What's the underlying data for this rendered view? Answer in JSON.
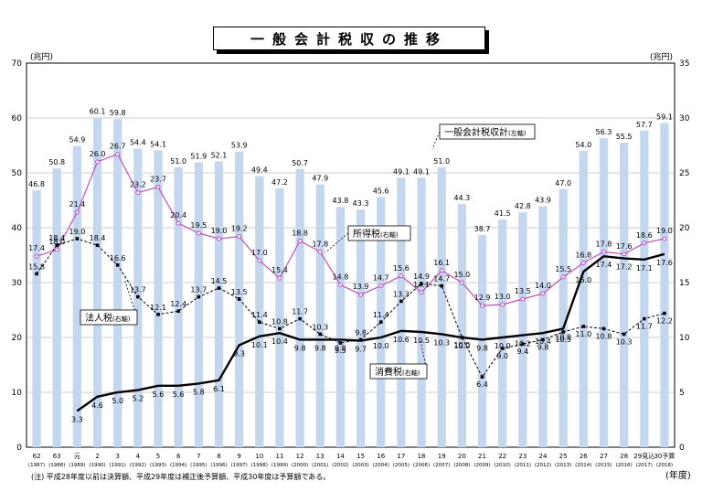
{
  "title": "一般会計税収の推移",
  "footnote": "(注) 平成28年度以前は決算額、平成29年度は補正後予算額、平成30年度は予算額である。",
  "chart_data": {
    "type": "bar+line",
    "y_left_unit": "(兆円)",
    "y_right_unit": "(兆円)",
    "x_unit": "(年度)",
    "y_left_range": [
      0,
      70
    ],
    "y_right_range": [
      0,
      35
    ],
    "y_left_ticks": [
      "0",
      "10",
      "20",
      "30",
      "40",
      "50",
      "60",
      "70"
    ],
    "y_right_ticks": [
      "0",
      "5",
      "10",
      "15",
      "20",
      "25",
      "30",
      "35"
    ],
    "grid": true,
    "categories_era": [
      "62",
      "63",
      "元",
      "2",
      "3",
      "4",
      "5",
      "6",
      "7",
      "8",
      "9",
      "10",
      "11",
      "12",
      "13",
      "14",
      "15",
      "16",
      "17",
      "18",
      "19",
      "20",
      "21",
      "22",
      "23",
      "24",
      "25",
      "26",
      "27",
      "28",
      "29見込",
      "30予算"
    ],
    "categories_year": [
      "(1987)",
      "(1988)",
      "(1989)",
      "(1990)",
      "(1991)",
      "(1992)",
      "(1993)",
      "(1994)",
      "(1995)",
      "(1996)",
      "(1997)",
      "(1998)",
      "(1999)",
      "(2000)",
      "(2001)",
      "(2002)",
      "(2003)",
      "(2004)",
      "(2005)",
      "(2006)",
      "(2007)",
      "(2008)",
      "(2009)",
      "(2010)",
      "(2011)",
      "(2012)",
      "(2013)",
      "(2014)",
      "(2015)",
      "(2016)",
      "(2017)",
      "(2018)"
    ],
    "series": [
      {
        "name": "一般会計税収計",
        "axis_note": "(左軸)",
        "kind": "bar",
        "color": "#c5d7ef",
        "values": [
          46.8,
          50.8,
          54.9,
          60.1,
          59.8,
          54.4,
          54.1,
          51.0,
          51.9,
          52.1,
          53.9,
          49.4,
          47.2,
          50.7,
          47.9,
          43.8,
          43.3,
          45.6,
          49.1,
          49.1,
          51.0,
          44.3,
          38.7,
          41.5,
          42.8,
          43.9,
          47.0,
          54.0,
          56.3,
          55.5,
          57.7,
          59.1
        ],
        "labels": [
          "46.8",
          "50.8",
          "54.9",
          "60.1",
          "59.8",
          "54.4",
          "54.1",
          "51.0",
          "51.9",
          "52.1",
          "53.9",
          "49.4",
          "47.2",
          "50.7",
          "47.9",
          "43.8",
          "43.3",
          "45.6",
          "49.1",
          "49.1",
          "51.0",
          "44.3",
          "38.7",
          "41.5",
          "42.8",
          "43.9",
          "47.0",
          "54.0",
          "56.3",
          "55.5",
          "57.7",
          "59.1"
        ]
      },
      {
        "name": "所得税",
        "axis_note": "(右軸)",
        "kind": "line",
        "color": "#c050c0",
        "values": [
          17.4,
          18.0,
          21.4,
          26.0,
          26.7,
          23.2,
          23.7,
          20.4,
          19.5,
          19.0,
          19.2,
          17.0,
          15.4,
          18.8,
          17.8,
          14.8,
          13.9,
          14.7,
          15.6,
          14.1,
          16.1,
          15.0,
          12.9,
          13.0,
          13.5,
          14.0,
          15.5,
          16.8,
          17.8,
          17.6,
          18.6,
          19.0
        ],
        "labels": [
          "17.4",
          "18.0",
          "21.4",
          "26.0",
          "26.7",
          "23.2",
          "23.7",
          "20.4",
          "19.5",
          "19.0",
          "19.2",
          "17.0",
          "15.4",
          "18.8",
          "17.8",
          "14.8",
          "13.9",
          "14.7",
          "15.6",
          "14.1",
          "16.1",
          "15.0",
          "12.9",
          "13.0",
          "13.5",
          "14.0",
          "15.5",
          "16.8",
          "17.8",
          "17.6",
          "18.6",
          "19.0"
        ]
      },
      {
        "name": "法人税",
        "axis_note": "(右軸)",
        "kind": "dashed-line",
        "color": "#000000",
        "values": [
          15.8,
          18.4,
          19.0,
          18.4,
          16.6,
          13.7,
          12.1,
          12.4,
          13.7,
          14.5,
          13.5,
          11.4,
          10.8,
          11.7,
          10.3,
          9.5,
          9.8,
          11.4,
          13.3,
          14.9,
          14.7,
          10.0,
          6.4,
          9.0,
          9.4,
          9.8,
          10.5,
          11.0,
          10.8,
          10.3,
          11.7,
          12.2
        ],
        "labels": [
          "15.8",
          "18.4",
          "19.0",
          "18.4",
          "16.6",
          "13.7",
          "12.1",
          "12.4",
          "13.7",
          "14.5",
          "13.5",
          "11.4",
          "10.8",
          "11.7",
          "10.3",
          "9.5",
          "9.8",
          "11.4",
          "13.3",
          "14.9",
          "14.7",
          "10.0",
          "6.4",
          "9.0",
          "9.4",
          "9.8",
          "10.5",
          "11.0",
          "10.8",
          "10.3",
          "11.7",
          "12.2"
        ]
      },
      {
        "name": "消費税",
        "axis_note": "(右軸)",
        "kind": "bold-line",
        "color": "#000000",
        "values": [
          null,
          null,
          3.3,
          4.6,
          5.0,
          5.2,
          5.6,
          5.6,
          5.8,
          6.1,
          9.3,
          10.1,
          10.4,
          9.8,
          9.8,
          9.8,
          9.7,
          10.0,
          10.6,
          10.5,
          10.3,
          10.0,
          9.8,
          10.0,
          10.2,
          10.4,
          10.8,
          16.0,
          17.4,
          17.2,
          17.1,
          17.6
        ],
        "labels": [
          "",
          "",
          "3.3",
          "4.6",
          "5.0",
          "5.2",
          "5.6",
          "5.6",
          "5.8",
          "6.1",
          "9.3",
          "10.1",
          "10.4",
          "9.8",
          "9.8",
          "9.8",
          "9.7",
          "10.0",
          "10.6",
          "10.5",
          "10.3",
          "10.0",
          "9.8",
          "10.0",
          "10.2",
          "10.4",
          "10.8",
          "16.0",
          "17.4",
          "17.2",
          "17.1",
          "17.6"
        ]
      }
    ]
  }
}
